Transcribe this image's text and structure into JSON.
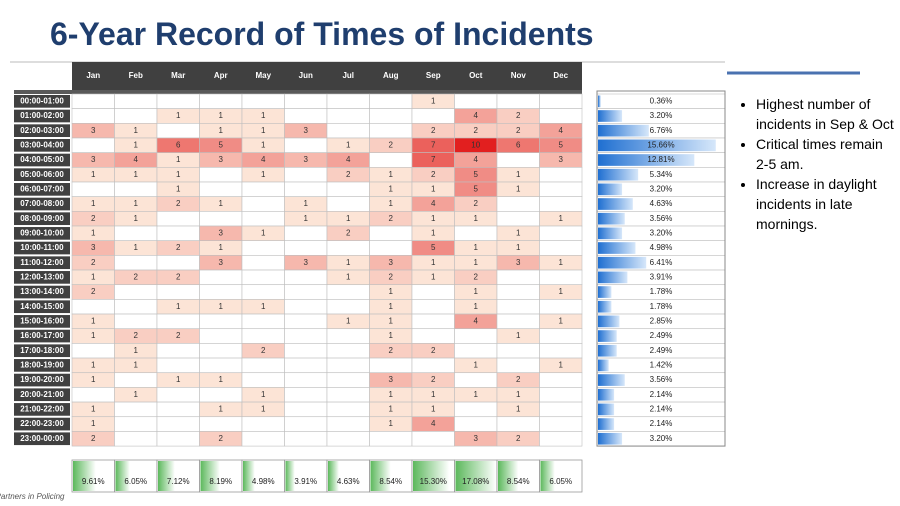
{
  "title": "6-Year Record of Times of Incidents",
  "table": {
    "columns": [
      "Jan",
      "Feb",
      "Mar",
      "Apr",
      "May",
      "Jun",
      "Jul",
      "Aug",
      "Sep",
      "Oct",
      "Nov",
      "Dec"
    ],
    "rows": [
      {
        "label": "00:00-01:00",
        "values": [
          null,
          null,
          null,
          null,
          null,
          null,
          null,
          null,
          1,
          null,
          null,
          null
        ]
      },
      {
        "label": "01:00-02:00",
        "values": [
          null,
          null,
          1,
          1,
          1,
          null,
          null,
          null,
          null,
          4,
          2,
          null
        ]
      },
      {
        "label": "02:00-03:00",
        "values": [
          3,
          1,
          null,
          1,
          1,
          3,
          null,
          null,
          2,
          2,
          2,
          4
        ]
      },
      {
        "label": "03:00-04:00",
        "values": [
          null,
          1,
          6,
          5,
          1,
          null,
          1,
          2,
          7,
          10,
          6,
          5
        ]
      },
      {
        "label": "04:00-05:00",
        "values": [
          3,
          4,
          1,
          3,
          4,
          3,
          4,
          null,
          7,
          4,
          null,
          3
        ]
      },
      {
        "label": "05:00-06:00",
        "values": [
          1,
          1,
          1,
          null,
          1,
          null,
          2,
          1,
          2,
          5,
          1,
          null
        ]
      },
      {
        "label": "06:00-07:00",
        "values": [
          null,
          null,
          1,
          null,
          null,
          null,
          null,
          1,
          1,
          5,
          1,
          null
        ]
      },
      {
        "label": "07:00-08:00",
        "values": [
          1,
          1,
          2,
          1,
          null,
          1,
          null,
          1,
          4,
          2,
          null,
          null
        ]
      },
      {
        "label": "08:00-09:00",
        "values": [
          2,
          1,
          null,
          null,
          null,
          1,
          1,
          2,
          1,
          1,
          null,
          1
        ]
      },
      {
        "label": "09:00-10:00",
        "values": [
          1,
          null,
          null,
          3,
          1,
          null,
          2,
          null,
          1,
          null,
          1,
          null
        ]
      },
      {
        "label": "10:00-11:00",
        "values": [
          3,
          1,
          2,
          1,
          null,
          null,
          null,
          null,
          5,
          1,
          1,
          null
        ]
      },
      {
        "label": "11:00-12:00",
        "values": [
          2,
          null,
          null,
          3,
          null,
          3,
          1,
          3,
          1,
          1,
          3,
          1
        ]
      },
      {
        "label": "12:00-13:00",
        "values": [
          1,
          2,
          2,
          null,
          null,
          null,
          1,
          2,
          1,
          2,
          null,
          null
        ]
      },
      {
        "label": "13:00-14:00",
        "values": [
          2,
          null,
          null,
          null,
          null,
          null,
          null,
          1,
          null,
          1,
          null,
          1
        ]
      },
      {
        "label": "14:00-15:00",
        "values": [
          null,
          null,
          1,
          1,
          1,
          null,
          null,
          1,
          null,
          1,
          null,
          null
        ]
      },
      {
        "label": "15:00-16:00",
        "values": [
          1,
          null,
          null,
          null,
          null,
          null,
          1,
          1,
          null,
          4,
          null,
          1
        ]
      },
      {
        "label": "16:00-17:00",
        "values": [
          1,
          2,
          2,
          null,
          null,
          null,
          null,
          1,
          null,
          null,
          1,
          null
        ]
      },
      {
        "label": "17:00-18:00",
        "values": [
          null,
          1,
          null,
          null,
          2,
          null,
          null,
          2,
          2,
          null,
          null,
          null
        ]
      },
      {
        "label": "18:00-19:00",
        "values": [
          1,
          1,
          null,
          null,
          null,
          null,
          null,
          null,
          null,
          1,
          null,
          1
        ]
      },
      {
        "label": "19:00-20:00",
        "values": [
          1,
          null,
          1,
          1,
          null,
          null,
          null,
          3,
          2,
          null,
          2,
          null
        ]
      },
      {
        "label": "20:00-21:00",
        "values": [
          null,
          1,
          null,
          null,
          1,
          null,
          null,
          1,
          1,
          1,
          1,
          null
        ]
      },
      {
        "label": "21:00-22:00",
        "values": [
          1,
          null,
          null,
          1,
          1,
          null,
          null,
          1,
          1,
          null,
          1,
          null
        ]
      },
      {
        "label": "22:00-23:00",
        "values": [
          1,
          null,
          null,
          null,
          null,
          null,
          null,
          1,
          4,
          null,
          null,
          null
        ]
      },
      {
        "label": "23:00-00:00",
        "values": [
          2,
          null,
          null,
          2,
          null,
          null,
          null,
          null,
          null,
          3,
          2,
          null
        ]
      }
    ]
  },
  "row_totals": {
    "values": [
      0.36,
      3.2,
      6.76,
      15.66,
      12.81,
      5.34,
      3.2,
      4.63,
      3.56,
      3.2,
      4.98,
      6.41,
      3.91,
      1.78,
      1.78,
      2.85,
      2.49,
      2.49,
      1.42,
      3.56,
      2.14,
      2.14,
      2.14,
      3.2
    ],
    "value_labels": [
      "0.36%",
      "3.20%",
      "6.76%",
      "15.66%",
      "12.81%",
      "5.34%",
      "3.20%",
      "4.63%",
      "3.56%",
      "3.20%",
      "4.98%",
      "6.41%",
      "3.91%",
      "1.78%",
      "1.78%",
      "2.85%",
      "2.49%",
      "2.49%",
      "1.42%",
      "3.56%",
      "2.14%",
      "2.14%",
      "2.14%",
      "3.20%"
    ]
  },
  "month_totals": {
    "values": [
      9.61,
      6.05,
      7.12,
      8.19,
      4.98,
      3.91,
      4.63,
      8.54,
      15.3,
      17.08,
      8.54,
      6.05
    ],
    "value_labels": [
      "9.61%",
      "6.05%",
      "7.12%",
      "8.19%",
      "4.98%",
      "3.91%",
      "4.63%",
      "8.54%",
      "15.30%",
      "17.08%",
      "8.54%",
      "6.05%"
    ]
  },
  "bullets": [
    "Highest number of incidents in Sep & Oct",
    "Critical times remain 2-5 am.",
    "Increase in daylight incidents in late mornings."
  ],
  "logo_text": "Partners in Policing"
}
